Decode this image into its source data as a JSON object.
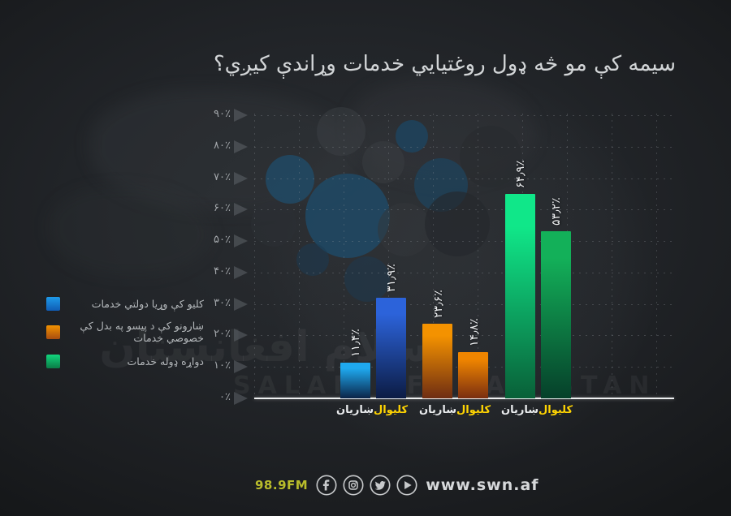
{
  "title": "سيمه کې مو څه ډول روغتيايي خدمات وړاندې کيږي؟",
  "chart_data": {
    "type": "bar",
    "title": "سيمه کې مو څه ډول روغتيايي خدمات وړاندې کيږي؟",
    "ylabel": "",
    "xlabel": "",
    "ylim": [
      0,
      90
    ],
    "grid": true,
    "legend_position": "left",
    "categories": [
      "ښاريان",
      "کليوال"
    ],
    "series": [
      {
        "name": "کليو کې وړيا دولتي خدمات",
        "values": [
          11.4,
          31.9
        ]
      },
      {
        "name": "ښارونو کې د پيسو په بدل کې خصوصي خدمات",
        "values": [
          23.6,
          14.8
        ]
      },
      {
        "name": "دواړه ډوله خدمات",
        "values": [
          64.9,
          53.2
        ]
      }
    ],
    "bars": [
      {
        "series": "کليو کې وړيا دولتي خدمات",
        "category": "ښاريان",
        "value": 11.4,
        "label": "۱۱٫۴٪",
        "top_color": "#1fa9ef",
        "bottom_color": "#0b2448",
        "category_color": "#e9ebed"
      },
      {
        "series": "کليو کې وړيا دولتي خدمات",
        "category": "کليوال",
        "value": 31.9,
        "label": "۳۱٫۹٪",
        "top_color": "#2c63da",
        "bottom_color": "#0c1c44",
        "category_color": "#ffd402"
      },
      {
        "series": "ښارونو کې د پيسو په بدل کې خصوصي خدمات",
        "category": "ښاريان",
        "value": 23.6,
        "label": "۲۳٫۶٪",
        "top_color": "#f49200",
        "bottom_color": "#6e2d12",
        "category_color": "#e9ebed"
      },
      {
        "series": "ښارونو کې د پيسو په بدل کې خصوصي خدمات",
        "category": "کليوال",
        "value": 14.8,
        "label": "۱۴٫۸٪",
        "top_color": "#ef8500",
        "bottom_color": "#7a2e10",
        "category_color": "#ffd402"
      },
      {
        "series": "دواړه ډوله خدمات",
        "category": "ښاريان",
        "value": 64.9,
        "label": "۶۴٫۹٪",
        "top_color": "#10e789",
        "bottom_color": "#096038",
        "category_color": "#e9ebed"
      },
      {
        "series": "دواړه ډوله خدمات",
        "category": "کليوال",
        "value": 53.2,
        "label": "۵۳٫۲٪",
        "top_color": "#13b059",
        "bottom_color": "#06402a",
        "category_color": "#ffd402"
      }
    ],
    "y_ticks": [
      {
        "value": 0,
        "label": "۰٪"
      },
      {
        "value": 10,
        "label": "۱۰٪"
      },
      {
        "value": 20,
        "label": "۲۰٪"
      },
      {
        "value": 30,
        "label": "۳۰٪"
      },
      {
        "value": 40,
        "label": "۴۰٪"
      },
      {
        "value": 50,
        "label": "۵۰٪"
      },
      {
        "value": 60,
        "label": "۶۰٪"
      },
      {
        "value": 70,
        "label": "۷۰٪"
      },
      {
        "value": 80,
        "label": "۸۰٪"
      },
      {
        "value": 90,
        "label": "۹۰٪"
      }
    ]
  },
  "legend": {
    "items": [
      {
        "label": "کليو کې وړيا دولتي خدمات",
        "top_color": "#1e9ae9",
        "bottom_color": "#105cb4"
      },
      {
        "label": "ښارونو کې د پيسو په بدل کې خصوصي خدمات",
        "top_color": "#f29200",
        "bottom_color": "#a84d10"
      },
      {
        "label": "دواړه ډوله خدمات",
        "top_color": "#12d67d",
        "bottom_color": "#0b7c46"
      }
    ]
  },
  "watermark": {
    "pashto": "سلام افغانستان",
    "latin": "SALAM AFGHANISTAN"
  },
  "footer": {
    "frequency": "98.9FM",
    "website": "www.swn.af",
    "icons": [
      "facebook",
      "instagram",
      "twitter",
      "play"
    ],
    "icon_color": "#c7c9cb",
    "frequency_color": "#b9bd2b"
  },
  "colors": {
    "background": "#222529",
    "title_text": "#d2d5d7",
    "axis_label": "#a3a7ab",
    "axis_line": "#eef0f1",
    "highlight_yellow": "#ffd402",
    "category_white": "#e9ebed"
  }
}
